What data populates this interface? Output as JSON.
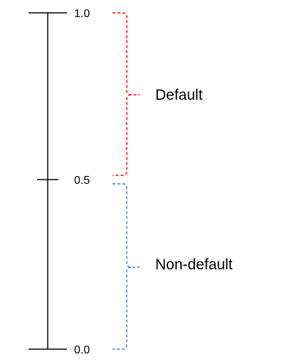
{
  "scale": {
    "ticks": [
      {
        "value": 1.0,
        "label": "1.0"
      },
      {
        "value": 0.5,
        "label": "0.5"
      },
      {
        "value": 0.0,
        "label": "0.0"
      }
    ],
    "min": 0.0,
    "max": 1.0
  },
  "ranges": [
    {
      "label": "Default",
      "from": 0.5,
      "to": 1.0,
      "color": "#ff0000"
    },
    {
      "label": "Non-default",
      "from": 0.0,
      "to": 0.5,
      "color": "#3d7cc9"
    }
  ],
  "colors": {
    "axis": "#000000"
  }
}
